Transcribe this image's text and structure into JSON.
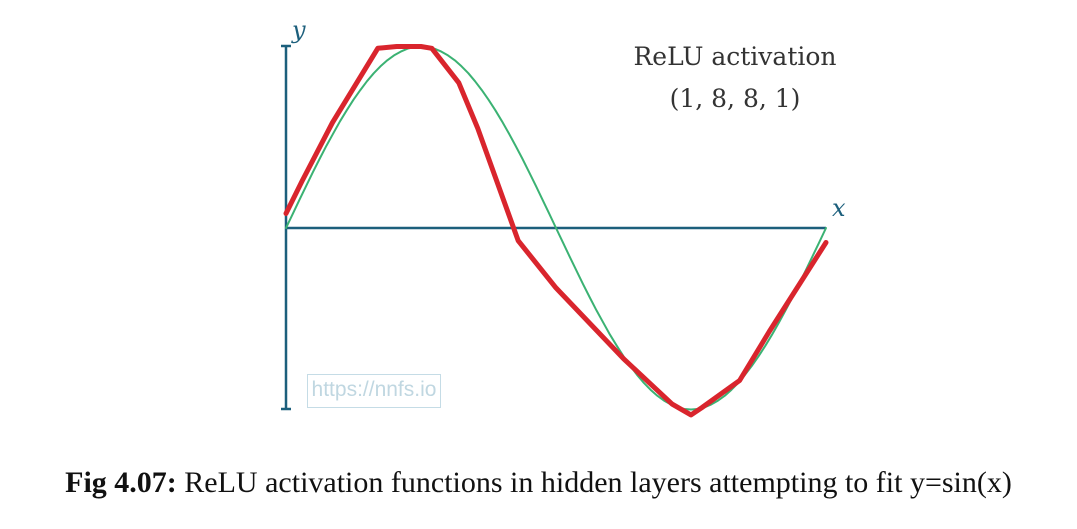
{
  "chart_data": {
    "type": "line",
    "title": "ReLU activation",
    "subtitle": "(1, 8, 8, 1)",
    "xlabel": "x",
    "ylabel": "y",
    "xlim": [
      0,
      1
    ],
    "ylim": [
      -1,
      1
    ],
    "grid": false,
    "legend": "none",
    "series": [
      {
        "role": "target",
        "color": "#3bb273",
        "x": [
          0,
          0.0125,
          0.025,
          0.0375,
          0.05,
          0.0625,
          0.075,
          0.0875,
          0.1,
          0.1125,
          0.125,
          0.1375,
          0.15,
          0.1625,
          0.175,
          0.1875,
          0.2,
          0.2125,
          0.225,
          0.2375,
          0.25,
          0.2625,
          0.275,
          0.2875,
          0.3,
          0.3125,
          0.325,
          0.3375,
          0.35,
          0.3625,
          0.375,
          0.3875,
          0.4,
          0.4125,
          0.425,
          0.4375,
          0.45,
          0.4625,
          0.475,
          0.4875,
          0.5,
          0.5125,
          0.525,
          0.5375,
          0.55,
          0.5625,
          0.575,
          0.5875,
          0.6,
          0.6125,
          0.625,
          0.6375,
          0.65,
          0.6625,
          0.675,
          0.6875,
          0.7,
          0.7125,
          0.725,
          0.7375,
          0.75,
          0.7625,
          0.775,
          0.7875,
          0.8,
          0.8125,
          0.825,
          0.8375,
          0.85,
          0.8625,
          0.875,
          0.8875,
          0.9,
          0.9125,
          0.925,
          0.9375,
          0.95,
          0.9625,
          0.975,
          0.9875,
          1
        ],
        "y": [
          0,
          0.078,
          0.156,
          0.233,
          0.309,
          0.383,
          0.454,
          0.522,
          0.588,
          0.649,
          0.707,
          0.76,
          0.809,
          0.853,
          0.891,
          0.924,
          0.951,
          0.972,
          0.988,
          0.997,
          1,
          0.997,
          0.988,
          0.972,
          0.951,
          0.924,
          0.891,
          0.853,
          0.809,
          0.76,
          0.707,
          0.649,
          0.588,
          0.522,
          0.454,
          0.383,
          0.309,
          0.233,
          0.156,
          0.078,
          0,
          -0.078,
          -0.156,
          -0.233,
          -0.309,
          -0.383,
          -0.454,
          -0.522,
          -0.588,
          -0.649,
          -0.707,
          -0.76,
          -0.809,
          -0.853,
          -0.891,
          -0.924,
          -0.951,
          -0.972,
          -0.988,
          -0.997,
          -1,
          -0.997,
          -0.988,
          -0.972,
          -0.951,
          -0.924,
          -0.891,
          -0.853,
          -0.809,
          -0.76,
          -0.707,
          -0.649,
          -0.588,
          -0.522,
          -0.454,
          -0.383,
          -0.309,
          -0.233,
          -0.156,
          -0.078,
          0
        ]
      },
      {
        "role": "prediction",
        "color": "#d9252d",
        "x": [
          0,
          0.03,
          0.086,
          0.17,
          0.205,
          0.25,
          0.27,
          0.32,
          0.355,
          0.43,
          0.5,
          0.625,
          0.715,
          0.75,
          0.77,
          0.84,
          0.895,
          1
        ],
        "y": [
          0.08,
          0.26,
          0.58,
          0.99,
          1.0,
          1.0,
          0.99,
          0.8,
          0.55,
          -0.07,
          -0.33,
          -0.72,
          -0.97,
          -1.03,
          -0.99,
          -0.84,
          -0.57,
          -0.08
        ]
      }
    ]
  },
  "watermark": "https://nnfs.io",
  "caption": {
    "prefix": "Fig 4.07:",
    "text": " ReLU activation functions in hidden layers attempting to fit y=sin(x)"
  }
}
